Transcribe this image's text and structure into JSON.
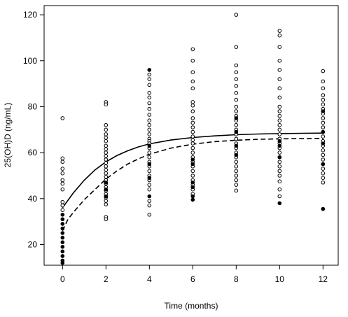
{
  "chart_data": {
    "type": "scatter",
    "title": "",
    "xlabel": "Time (months)",
    "ylabel": "25(OH)D (ng/mL)",
    "xlim": [
      -0.85,
      12.7
    ],
    "ylim": [
      11,
      124
    ],
    "xticks": [
      0,
      2,
      4,
      6,
      8,
      10,
      12
    ],
    "yticks": [
      20,
      40,
      60,
      80,
      100,
      120
    ],
    "grid": false,
    "legend": "none",
    "series": [
      {
        "marker": "open-circle",
        "points": [
          [
            0,
            75
          ],
          [
            0,
            57.5
          ],
          [
            0,
            56
          ],
          [
            0,
            53
          ],
          [
            0,
            51
          ],
          [
            0,
            48
          ],
          [
            0,
            46.5
          ],
          [
            0,
            44
          ],
          [
            0,
            38.5
          ],
          [
            0,
            37
          ],
          [
            0,
            35
          ],
          [
            2,
            82
          ],
          [
            2,
            81
          ],
          [
            2,
            72
          ],
          [
            2,
            70
          ],
          [
            2,
            68
          ],
          [
            2,
            66.5
          ],
          [
            2,
            65
          ],
          [
            2,
            63
          ],
          [
            2,
            61.5
          ],
          [
            2,
            60
          ],
          [
            2,
            58.5
          ],
          [
            2,
            57
          ],
          [
            2,
            55.5
          ],
          [
            2,
            54
          ],
          [
            2,
            52.5
          ],
          [
            2,
            51
          ],
          [
            2,
            49.5
          ],
          [
            2,
            48
          ],
          [
            2,
            46.5
          ],
          [
            2,
            45
          ],
          [
            2,
            43.5
          ],
          [
            2,
            42
          ],
          [
            2,
            40.5
          ],
          [
            2,
            39
          ],
          [
            2,
            37.5
          ],
          [
            2,
            32
          ],
          [
            2,
            31
          ],
          [
            4,
            94
          ],
          [
            4,
            92
          ],
          [
            4,
            89.5
          ],
          [
            4,
            86
          ],
          [
            4,
            84
          ],
          [
            4,
            81.5
          ],
          [
            4,
            79
          ],
          [
            4,
            76.5
          ],
          [
            4,
            74
          ],
          [
            4,
            72
          ],
          [
            4,
            70
          ],
          [
            4,
            68
          ],
          [
            4,
            66
          ],
          [
            4,
            65
          ],
          [
            4,
            64
          ],
          [
            4,
            62
          ],
          [
            4,
            60
          ],
          [
            4,
            58
          ],
          [
            4,
            56
          ],
          [
            4,
            54
          ],
          [
            4,
            52
          ],
          [
            4,
            50
          ],
          [
            4,
            48
          ],
          [
            4,
            46
          ],
          [
            4,
            44
          ],
          [
            4,
            39
          ],
          [
            4,
            37
          ],
          [
            4,
            33
          ],
          [
            6,
            105
          ],
          [
            6,
            100
          ],
          [
            6,
            95
          ],
          [
            6,
            91
          ],
          [
            6,
            88
          ],
          [
            6,
            82
          ],
          [
            6,
            80.5
          ],
          [
            6,
            78
          ],
          [
            6,
            75
          ],
          [
            6,
            73
          ],
          [
            6,
            71
          ],
          [
            6,
            69
          ],
          [
            6,
            67
          ],
          [
            6,
            65.5
          ],
          [
            6,
            64
          ],
          [
            6,
            62
          ],
          [
            6,
            60
          ],
          [
            6,
            58
          ],
          [
            6,
            56
          ],
          [
            6,
            54
          ],
          [
            6,
            52
          ],
          [
            6,
            50
          ],
          [
            6,
            48
          ],
          [
            6,
            46
          ],
          [
            6,
            44
          ],
          [
            6,
            42
          ],
          [
            8,
            120
          ],
          [
            8,
            106
          ],
          [
            8,
            98
          ],
          [
            8,
            95
          ],
          [
            8,
            92
          ],
          [
            8,
            89
          ],
          [
            8,
            86
          ],
          [
            8,
            83
          ],
          [
            8,
            80
          ],
          [
            8,
            78
          ],
          [
            8,
            76
          ],
          [
            8,
            74
          ],
          [
            8,
            72
          ],
          [
            8,
            70
          ],
          [
            8,
            68
          ],
          [
            8,
            66
          ],
          [
            8,
            64
          ],
          [
            8,
            62
          ],
          [
            8,
            60
          ],
          [
            8,
            58
          ],
          [
            8,
            56
          ],
          [
            8,
            54
          ],
          [
            8,
            52
          ],
          [
            8,
            50
          ],
          [
            8,
            48
          ],
          [
            8,
            46
          ],
          [
            8,
            43.5
          ],
          [
            10,
            113
          ],
          [
            10,
            111
          ],
          [
            10,
            106
          ],
          [
            10,
            100
          ],
          [
            10,
            96
          ],
          [
            10,
            92
          ],
          [
            10,
            88
          ],
          [
            10,
            84
          ],
          [
            10,
            80
          ],
          [
            10,
            78
          ],
          [
            10,
            76
          ],
          [
            10,
            74
          ],
          [
            10,
            72
          ],
          [
            10,
            70
          ],
          [
            10,
            68
          ],
          [
            10,
            66
          ],
          [
            10,
            64
          ],
          [
            10,
            62
          ],
          [
            10,
            60
          ],
          [
            10,
            58
          ],
          [
            10,
            56
          ],
          [
            10,
            54
          ],
          [
            10,
            52
          ],
          [
            10,
            50
          ],
          [
            10,
            47.5
          ],
          [
            10,
            44
          ],
          [
            10,
            41
          ],
          [
            12,
            95.5
          ],
          [
            12,
            91
          ],
          [
            12,
            88
          ],
          [
            12,
            85
          ],
          [
            12,
            83
          ],
          [
            12,
            81
          ],
          [
            12,
            79
          ],
          [
            12,
            77
          ],
          [
            12,
            75
          ],
          [
            12,
            73
          ],
          [
            12,
            71
          ],
          [
            12,
            69
          ],
          [
            12,
            67
          ],
          [
            12,
            65
          ],
          [
            12,
            63
          ],
          [
            12,
            61
          ],
          [
            12,
            59
          ],
          [
            12,
            57
          ],
          [
            12,
            55
          ],
          [
            12,
            53
          ],
          [
            12,
            51
          ],
          [
            12,
            49
          ],
          [
            12,
            47
          ]
        ]
      },
      {
        "marker": "filled-circle",
        "points": [
          [
            0,
            33
          ],
          [
            0,
            31
          ],
          [
            0,
            29
          ],
          [
            0,
            27
          ],
          [
            0,
            25
          ],
          [
            0,
            23
          ],
          [
            0,
            21
          ],
          [
            0,
            19
          ],
          [
            0,
            17
          ],
          [
            0,
            15
          ],
          [
            0,
            13
          ],
          [
            0,
            12
          ],
          [
            2,
            47
          ],
          [
            2,
            44
          ],
          [
            2,
            41
          ],
          [
            4,
            96
          ],
          [
            4,
            63
          ],
          [
            4,
            55
          ],
          [
            4,
            49
          ],
          [
            4,
            41
          ],
          [
            6,
            57
          ],
          [
            6,
            55
          ],
          [
            6,
            47
          ],
          [
            6,
            45
          ],
          [
            6,
            41
          ],
          [
            6,
            39.5
          ],
          [
            8,
            75
          ],
          [
            8,
            69
          ],
          [
            8,
            63
          ],
          [
            8,
            59
          ],
          [
            10,
            65
          ],
          [
            10,
            63
          ],
          [
            10,
            58
          ],
          [
            10,
            38
          ],
          [
            12,
            78
          ],
          [
            12,
            69
          ],
          [
            12,
            64
          ],
          [
            12,
            55
          ],
          [
            12,
            35.5
          ]
        ]
      }
    ],
    "curves": [
      {
        "style": "solid",
        "points": [
          [
            0,
            36
          ],
          [
            0.5,
            42.5
          ],
          [
            1,
            48
          ],
          [
            1.5,
            52.5
          ],
          [
            2,
            56
          ],
          [
            2.5,
            58.7
          ],
          [
            3,
            60.8
          ],
          [
            3.5,
            62.5
          ],
          [
            4,
            63.8
          ],
          [
            5,
            65.5
          ],
          [
            6,
            66.6
          ],
          [
            7,
            67.3
          ],
          [
            8,
            67.8
          ],
          [
            9,
            68.1
          ],
          [
            10,
            68.3
          ],
          [
            11,
            68.4
          ],
          [
            12,
            68.5
          ]
        ]
      },
      {
        "style": "dashed",
        "points": [
          [
            0,
            26
          ],
          [
            0.25,
            31
          ],
          [
            0.5,
            34
          ],
          [
            1,
            39.5
          ],
          [
            1.5,
            44
          ],
          [
            2,
            48.5
          ],
          [
            2.5,
            52
          ],
          [
            3,
            55
          ],
          [
            3.5,
            57.3
          ],
          [
            4,
            59.3
          ],
          [
            5,
            62
          ],
          [
            6,
            63.7
          ],
          [
            7,
            64.8
          ],
          [
            8,
            65.4
          ],
          [
            9,
            65.8
          ],
          [
            10,
            66
          ],
          [
            11,
            66.1
          ],
          [
            12,
            66.2
          ]
        ]
      }
    ]
  }
}
